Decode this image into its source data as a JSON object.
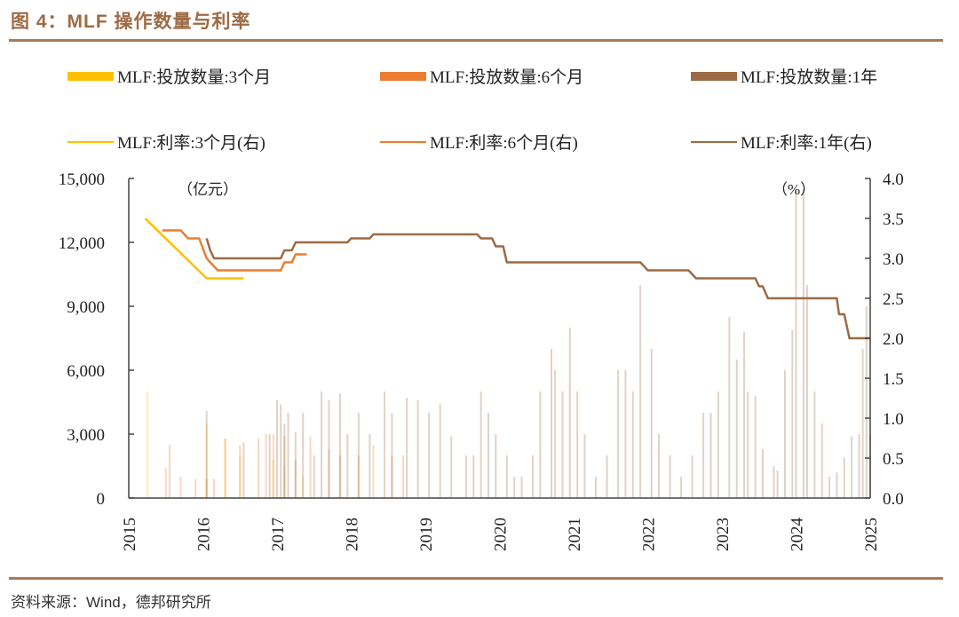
{
  "figure": {
    "title": "图 4：MLF 操作数量与利率",
    "source": "资料来源：Wind，德邦研究所"
  },
  "legend": [
    {
      "label": "MLF:投放数量:3个月",
      "kind": "bar",
      "color": "#ffc000"
    },
    {
      "label": "MLF:投放数量:6个月",
      "kind": "bar",
      "color": "#ed7d31"
    },
    {
      "label": "MLF:投放数量:1年",
      "kind": "bar",
      "color": "#9c6b45"
    },
    {
      "label": "MLF:利率:3个月(右)",
      "kind": "line",
      "color": "#ffc000"
    },
    {
      "label": "MLF:利率:6个月(右)",
      "kind": "line",
      "color": "#ed7d31"
    },
    {
      "label": "MLF:利率:1年(右)",
      "kind": "line",
      "color": "#9c6b45"
    }
  ],
  "chart_data": {
    "type": "bar+line",
    "title": "MLF 操作数量与利率",
    "xlabel": "",
    "ylabel_left": "（亿元）",
    "ylabel_right": "（%）",
    "ylim_left": [
      0,
      15000
    ],
    "ylim_right": [
      0,
      4.0
    ],
    "xlim": [
      2015,
      2025
    ],
    "grid": false,
    "legend_position": "top",
    "x_ticks": [
      "2015",
      "2016",
      "2017",
      "2018",
      "2019",
      "2020",
      "2021",
      "2022",
      "2023",
      "2024",
      "2025"
    ],
    "y_ticks_left": [
      "0",
      "3,000",
      "6,000",
      "9,000",
      "12,000",
      "15,000"
    ],
    "y_ticks_right": [
      "0.0",
      "0.5",
      "1.0",
      "1.5",
      "2.0",
      "2.5",
      "3.0",
      "3.5",
      "4.0"
    ],
    "series": [
      {
        "name": "MLF:投放数量:3个月",
        "type": "bar",
        "axis": "left",
        "color": "#ffc000",
        "points": [
          [
            2015.25,
            5000
          ],
          [
            2016.05,
            3500
          ],
          [
            2016.3,
            2800
          ],
          [
            2016.5,
            2000
          ],
          [
            2016.95,
            1800
          ],
          [
            2017.1,
            1500
          ],
          [
            2017.35,
            1000
          ]
        ]
      },
      {
        "name": "MLF:投放数量:6个月",
        "type": "bar",
        "axis": "left",
        "color": "#ed7d31",
        "points": [
          [
            2015.5,
            1400
          ],
          [
            2015.55,
            2500
          ],
          [
            2015.7,
            1000
          ],
          [
            2015.9,
            900
          ],
          [
            2016.05,
            900
          ],
          [
            2016.15,
            900
          ],
          [
            2016.3,
            2800
          ],
          [
            2016.5,
            2500
          ],
          [
            2016.75,
            2800
          ],
          [
            2016.85,
            3000
          ],
          [
            2016.95,
            3000
          ],
          [
            2017.1,
            2900
          ],
          [
            2017.25,
            1800
          ],
          [
            2017.45,
            2900
          ],
          [
            2017.7,
            2300
          ],
          [
            2017.85,
            2000
          ],
          [
            2018.1,
            2000
          ],
          [
            2018.3,
            2500
          ],
          [
            2018.55,
            2000
          ],
          [
            2018.7,
            2000
          ]
        ]
      },
      {
        "name": "MLF:投放数量:1年",
        "type": "bar",
        "axis": "left",
        "color": "#9c6b45",
        "points": [
          [
            2016.05,
            4100
          ],
          [
            2016.55,
            2600
          ],
          [
            2016.9,
            3000
          ],
          [
            2017.0,
            4600
          ],
          [
            2017.05,
            4400
          ],
          [
            2017.1,
            3500
          ],
          [
            2017.15,
            4000
          ],
          [
            2017.25,
            3100
          ],
          [
            2017.35,
            4000
          ],
          [
            2017.5,
            2000
          ],
          [
            2017.6,
            5000
          ],
          [
            2017.7,
            4600
          ],
          [
            2017.85,
            4900
          ],
          [
            2017.95,
            3000
          ],
          [
            2018.1,
            4000
          ],
          [
            2018.25,
            3000
          ],
          [
            2018.45,
            5000
          ],
          [
            2018.55,
            4000
          ],
          [
            2018.75,
            4700
          ],
          [
            2018.9,
            4600
          ],
          [
            2019.05,
            4000
          ],
          [
            2019.2,
            4400
          ],
          [
            2019.35,
            2900
          ],
          [
            2019.55,
            2000
          ],
          [
            2019.65,
            2000
          ],
          [
            2019.75,
            5000
          ],
          [
            2019.85,
            4000
          ],
          [
            2019.95,
            3000
          ],
          [
            2020.1,
            2000
          ],
          [
            2020.2,
            1000
          ],
          [
            2020.3,
            1000
          ],
          [
            2020.45,
            2000
          ],
          [
            2020.55,
            5000
          ],
          [
            2020.7,
            7000
          ],
          [
            2020.75,
            6000
          ],
          [
            2020.85,
            5000
          ],
          [
            2020.95,
            8000
          ],
          [
            2021.05,
            5000
          ],
          [
            2021.15,
            3000
          ],
          [
            2021.3,
            1000
          ],
          [
            2021.45,
            2000
          ],
          [
            2021.6,
            6000
          ],
          [
            2021.7,
            6000
          ],
          [
            2021.8,
            5000
          ],
          [
            2021.9,
            10000
          ],
          [
            2022.05,
            7000
          ],
          [
            2022.15,
            3000
          ],
          [
            2022.3,
            2000
          ],
          [
            2022.45,
            1000
          ],
          [
            2022.6,
            2000
          ],
          [
            2022.75,
            4000
          ],
          [
            2022.85,
            4000
          ],
          [
            2022.95,
            5000
          ],
          [
            2023.1,
            8500
          ],
          [
            2023.2,
            6500
          ],
          [
            2023.3,
            7800
          ],
          [
            2023.35,
            5000
          ],
          [
            2023.45,
            4800
          ],
          [
            2023.55,
            2300
          ],
          [
            2023.7,
            1500
          ],
          [
            2023.75,
            1300
          ],
          [
            2023.85,
            6000
          ],
          [
            2023.95,
            7900
          ],
          [
            2024.0,
            14500
          ],
          [
            2024.1,
            14500
          ],
          [
            2024.15,
            10000
          ],
          [
            2024.25,
            5000
          ],
          [
            2024.35,
            3500
          ],
          [
            2024.45,
            1000
          ],
          [
            2024.55,
            1200
          ],
          [
            2024.65,
            1900
          ],
          [
            2024.75,
            2900
          ],
          [
            2024.85,
            3000
          ],
          [
            2024.9,
            7000
          ],
          [
            2024.95,
            9000
          ],
          [
            2025.0,
            3000
          ]
        ]
      },
      {
        "name": "MLF:利率:3个月(右)",
        "type": "line",
        "axis": "right",
        "color": "#ffc000",
        "x": [
          2015.22,
          2016.05,
          2016.55
        ],
        "y": [
          3.5,
          2.75,
          2.75
        ]
      },
      {
        "name": "MLF:利率:6个月(右)",
        "type": "line",
        "axis": "right",
        "color": "#ed7d31",
        "x": [
          2015.45,
          2015.7,
          2015.8,
          2015.95,
          2016.05,
          2016.1,
          2016.2,
          2017.05,
          2017.1,
          2017.2,
          2017.25,
          2017.4
        ],
        "y": [
          3.35,
          3.35,
          3.25,
          3.25,
          3.0,
          2.95,
          2.85,
          2.85,
          2.95,
          2.95,
          3.05,
          3.05
        ]
      },
      {
        "name": "MLF:利率:1年(右)",
        "type": "line",
        "axis": "right",
        "color": "#9c6b45",
        "x": [
          2016.05,
          2016.1,
          2016.15,
          2017.05,
          2017.1,
          2017.2,
          2017.25,
          2017.95,
          2018.0,
          2018.25,
          2018.3,
          2019.7,
          2019.75,
          2019.9,
          2019.95,
          2020.05,
          2020.1,
          2021.9,
          2022.0,
          2022.55,
          2022.65,
          2023.45,
          2023.5,
          2023.55,
          2023.62,
          2024.55,
          2024.58,
          2024.65,
          2024.72,
          2025.0
        ],
        "y": [
          3.25,
          3.1,
          3.0,
          3.0,
          3.1,
          3.1,
          3.2,
          3.2,
          3.25,
          3.25,
          3.3,
          3.3,
          3.25,
          3.25,
          3.15,
          3.15,
          2.95,
          2.95,
          2.85,
          2.85,
          2.75,
          2.75,
          2.65,
          2.65,
          2.5,
          2.5,
          2.3,
          2.3,
          2.0,
          2.0
        ]
      }
    ]
  }
}
